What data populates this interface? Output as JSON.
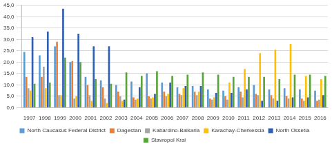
{
  "chart_data": {
    "type": "bar",
    "categories": [
      "1997",
      "1998",
      "1999",
      "2000",
      "2001",
      "2002",
      "2003",
      "2004",
      "2005",
      "2006",
      "2007",
      "2008",
      "2009",
      "2010",
      "2011",
      "2012",
      "2013",
      "2014",
      "2015",
      "2016"
    ],
    "series": [
      {
        "name": "North Caucasus Federal District",
        "color": "#5b9bd5",
        "values": [
          24.5,
          23,
          27,
          20,
          13.5,
          12,
          10,
          11.5,
          15,
          11,
          9,
          9.5,
          8,
          7.5,
          9,
          10,
          8,
          8.5,
          8,
          7.5
        ]
      },
      {
        "name": "Dagestan",
        "color": "#ed7d31",
        "values": [
          13.5,
          13.5,
          29,
          20.5,
          10,
          9,
          7,
          4.5,
          5,
          7,
          6,
          7,
          4,
          5,
          7,
          6,
          5.5,
          5,
          4,
          3
        ]
      },
      {
        "name": "Kabardino-Balkaria",
        "color": "#a5a5a5",
        "values": [
          8.5,
          18,
          5.5,
          4,
          5.5,
          4,
          5,
          3.5,
          4,
          5,
          5.5,
          5.5,
          3.5,
          3.5,
          4.5,
          5.5,
          4,
          4,
          3,
          3.5
        ]
      },
      {
        "name": "Karachay-Cherkessia",
        "color": "#ffc000",
        "values": [
          7.5,
          8.5,
          5.5,
          5,
          3,
          2,
          3,
          4,
          4.5,
          6,
          8.5,
          7,
          4.5,
          11,
          17,
          24,
          25.5,
          28,
          14,
          12.5
        ]
      },
      {
        "name": "North Ossetia",
        "color": "#2f5fb3",
        "values": [
          31,
          33.5,
          43.5,
          32.5,
          27,
          27,
          3.5,
          9,
          6,
          11,
          9.5,
          9.5,
          6.5,
          6.5,
          8,
          3,
          3,
          4.5,
          4.5,
          5.5
        ]
      },
      {
        "name": "Stavropol Krai",
        "color": "#5aa33a",
        "values": [
          10.5,
          11,
          22,
          20,
          12.5,
          10.5,
          15.5,
          14,
          16,
          14,
          14.5,
          15.5,
          14.5,
          13.5,
          13.5,
          13.5,
          12.5,
          14.5,
          14.5,
          14
        ]
      }
    ],
    "ylim": [
      0,
      45
    ],
    "yticks": [
      {
        "value": 0,
        "label": "0,0"
      },
      {
        "value": 5,
        "label": "5,0"
      },
      {
        "value": 10,
        "label": "10,0"
      },
      {
        "value": 15,
        "label": "15,0"
      },
      {
        "value": 20,
        "label": "20,0"
      },
      {
        "value": 25,
        "label": "25,0"
      },
      {
        "value": 30,
        "label": "30,0"
      },
      {
        "value": 35,
        "label": "35,0"
      },
      {
        "value": 40,
        "label": "40,0"
      },
      {
        "value": 45,
        "label": "45,0"
      }
    ],
    "grid": true,
    "legend": "bottom"
  }
}
